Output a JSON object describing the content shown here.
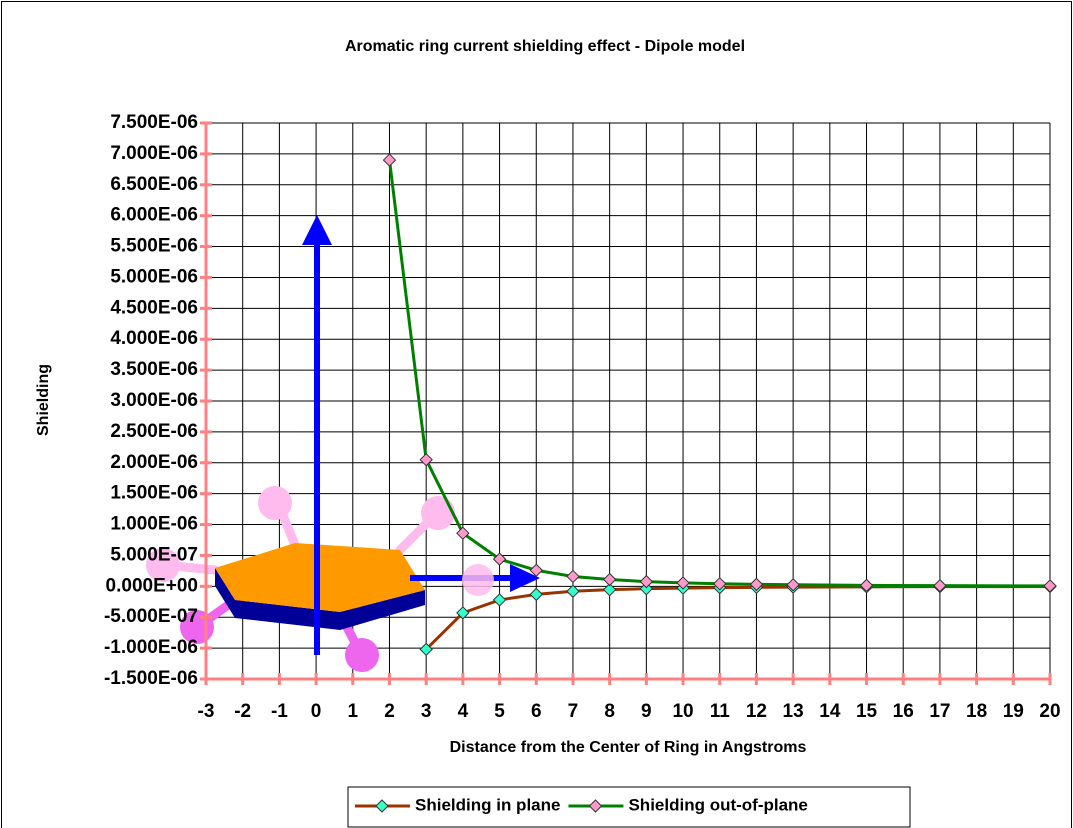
{
  "chart_data": {
    "type": "line",
    "title": "Aromatic ring current shielding effect - Dipole model",
    "x_label": "Distance from the Center of Ring in Angstroms",
    "y_label": "Shielding",
    "x": [
      2,
      3,
      4,
      5,
      6,
      7,
      8,
      9,
      10,
      11,
      12,
      13,
      15,
      17,
      20
    ],
    "series": [
      {
        "name": "Shielding in plane",
        "color": "#993300",
        "marker_color": "#33ffcc",
        "values": [
          null,
          -1.02e-06,
          -4.3e-07,
          -2.2e-07,
          -1.3e-07,
          -8e-08,
          -5.4e-08,
          -3.8e-08,
          -2.8e-08,
          -2.1e-08,
          -1.6e-08,
          -1.3e-08,
          -8e-09,
          -5.5e-09,
          -3.5e-09
        ]
      },
      {
        "name": "Shielding out-of-plane",
        "color": "#008000",
        "marker_color": "#ff99cc",
        "values": [
          6.9e-06,
          2.05e-06,
          8.6e-07,
          4.4e-07,
          2.6e-07,
          1.6e-07,
          1.1e-07,
          7.6e-08,
          5.5e-08,
          4.1e-08,
          3.2e-08,
          2.5e-08,
          1.6e-08,
          1.1e-08,
          6.9e-09
        ]
      }
    ],
    "xlim": [
      -3,
      20
    ],
    "xticks": [
      -3,
      -2,
      -1,
      0,
      1,
      2,
      3,
      4,
      5,
      6,
      7,
      8,
      9,
      10,
      11,
      12,
      13,
      14,
      15,
      16,
      17,
      18,
      19,
      20
    ],
    "ylim": [
      -1.5e-06,
      7.5e-06
    ],
    "yticks": [
      {
        "value": 7.5e-06,
        "label": "7.500E-06"
      },
      {
        "value": 7e-06,
        "label": "7.000E-06"
      },
      {
        "value": 6.5e-06,
        "label": "6.500E-06"
      },
      {
        "value": 6e-06,
        "label": "6.000E-06"
      },
      {
        "value": 5.5e-06,
        "label": "5.500E-06"
      },
      {
        "value": 5e-06,
        "label": "5.000E-06"
      },
      {
        "value": 4.5e-06,
        "label": "4.500E-06"
      },
      {
        "value": 4e-06,
        "label": "4.000E-06"
      },
      {
        "value": 3.5e-06,
        "label": "3.500E-06"
      },
      {
        "value": 3e-06,
        "label": "3.000E-06"
      },
      {
        "value": 2.5e-06,
        "label": "2.500E-06"
      },
      {
        "value": 2e-06,
        "label": "2.000E-06"
      },
      {
        "value": 1.5e-06,
        "label": "1.500E-06"
      },
      {
        "value": 1e-06,
        "label": "1.000E-06"
      },
      {
        "value": 5e-07,
        "label": "5.000E-07"
      },
      {
        "value": 0,
        "label": "0.000E+00"
      },
      {
        "value": -5e-07,
        "label": "-5.000E-07"
      },
      {
        "value": -1e-06,
        "label": "-1.000E-06"
      },
      {
        "value": -1.5e-06,
        "label": "-1.500E-06"
      }
    ],
    "grid": true,
    "legend": "bottom"
  }
}
